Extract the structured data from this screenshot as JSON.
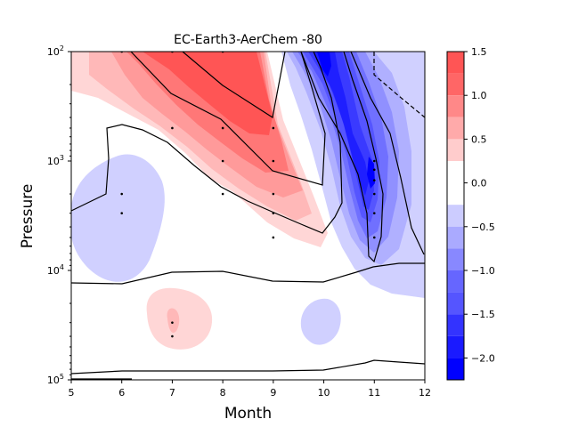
{
  "chart_data": {
    "type": "contour",
    "title": "EC-Earth3-AerChem -80",
    "xlabel": "Month",
    "ylabel": "Pressure",
    "xlim": [
      5,
      12
    ],
    "x_ticks": [
      "5",
      "6",
      "7",
      "8",
      "9",
      "10",
      "11",
      "12"
    ],
    "y_scale": "log",
    "y_inverted": true,
    "ylim": [
      100,
      100000
    ],
    "y_ticks": [
      {
        "base": "10",
        "exp": "2",
        "value": 100
      },
      {
        "base": "10",
        "exp": "3",
        "value": 1000
      },
      {
        "base": "10",
        "exp": "4",
        "value": 10000
      },
      {
        "base": "10",
        "exp": "5",
        "value": 100000
      }
    ],
    "colorbar": {
      "range": [
        -2.25,
        1.5
      ],
      "tick_labels": [
        "1.5",
        "1.0",
        "0.5",
        "0.0",
        "−0.5",
        "−1.0",
        "−1.5",
        "−2.0"
      ],
      "tick_values": [
        1.5,
        1.0,
        0.5,
        0.0,
        -0.5,
        -1.0,
        -1.5,
        -2.0
      ],
      "levels": [
        {
          "from": 1.25,
          "to": 1.5,
          "color": "#ff5555"
        },
        {
          "from": 1.0,
          "to": 1.25,
          "color": "#ff6666"
        },
        {
          "from": 0.75,
          "to": 1.0,
          "color": "#ff8888"
        },
        {
          "from": 0.5,
          "to": 0.75,
          "color": "#ffaaaa"
        },
        {
          "from": 0.25,
          "to": 0.5,
          "color": "#ffcccc"
        },
        {
          "from": -0.25,
          "to": 0.25,
          "color": "#ffffff"
        },
        {
          "from": -0.5,
          "to": -0.25,
          "color": "#ccccff"
        },
        {
          "from": -0.75,
          "to": -0.5,
          "color": "#aaaaff"
        },
        {
          "from": -1.0,
          "to": -0.75,
          "color": "#8888ff"
        },
        {
          "from": -1.25,
          "to": -1.0,
          "color": "#6666ff"
        },
        {
          "from": -1.5,
          "to": -1.25,
          "color": "#5555ff"
        },
        {
          "from": -1.75,
          "to": -1.5,
          "color": "#3333ff"
        },
        {
          "from": -2.0,
          "to": -1.75,
          "color": "#1a1aff"
        },
        {
          "from": -2.25,
          "to": -2.0,
          "color": "#0000ff"
        }
      ]
    },
    "regions": [
      {
        "sign": "positive",
        "month_range": [
          5,
          9.3
        ],
        "pressure_range": [
          100,
          6000
        ],
        "peak": 1.5,
        "peak_at": [
          7.5,
          200
        ]
      },
      {
        "sign": "positive",
        "month_range": [
          6.8,
          7.8
        ],
        "pressure_range": [
          20000,
          50000
        ],
        "peak": 0.75,
        "peak_at": [
          7,
          30000
        ]
      },
      {
        "sign": "negative",
        "month_range": [
          5,
          6.9
        ],
        "pressure_range": [
          500,
          12000
        ],
        "peak": -0.5,
        "peak_at": [
          6,
          3000
        ]
      },
      {
        "sign": "negative",
        "month_range": [
          9.6,
          12
        ],
        "pressure_range": [
          100,
          30000
        ],
        "peak": -2.25,
        "peak_at": [
          11,
          1500
        ]
      },
      {
        "sign": "negative",
        "month_range": [
          9.6,
          10.4
        ],
        "pressure_range": [
          25000,
          45000
        ],
        "peak": -0.5,
        "peak_at": [
          10,
          35000
        ]
      }
    ],
    "significance_points": [
      {
        "month": 6,
        "pressure": 100
      },
      {
        "month": 7,
        "pressure": 100
      },
      {
        "month": 8,
        "pressure": 100
      },
      {
        "month": 7,
        "pressure": 500
      },
      {
        "month": 8,
        "pressure": 500
      },
      {
        "month": 9,
        "pressure": 500
      },
      {
        "month": 8,
        "pressure": 1000
      },
      {
        "month": 9,
        "pressure": 1000
      },
      {
        "month": 6,
        "pressure": 2000
      },
      {
        "month": 8,
        "pressure": 2000
      },
      {
        "month": 9,
        "pressure": 2000
      },
      {
        "month": 6,
        "pressure": 3000
      },
      {
        "month": 9,
        "pressure": 3000
      },
      {
        "month": 9,
        "pressure": 5000
      },
      {
        "month": 11,
        "pressure": 1000
      },
      {
        "month": 11,
        "pressure": 1200
      },
      {
        "month": 11,
        "pressure": 1500
      },
      {
        "month": 11,
        "pressure": 2000
      },
      {
        "month": 11,
        "pressure": 3000
      },
      {
        "month": 11,
        "pressure": 5000
      },
      {
        "month": 7,
        "pressure": 30000
      },
      {
        "month": 7,
        "pressure": 40000
      }
    ]
  }
}
